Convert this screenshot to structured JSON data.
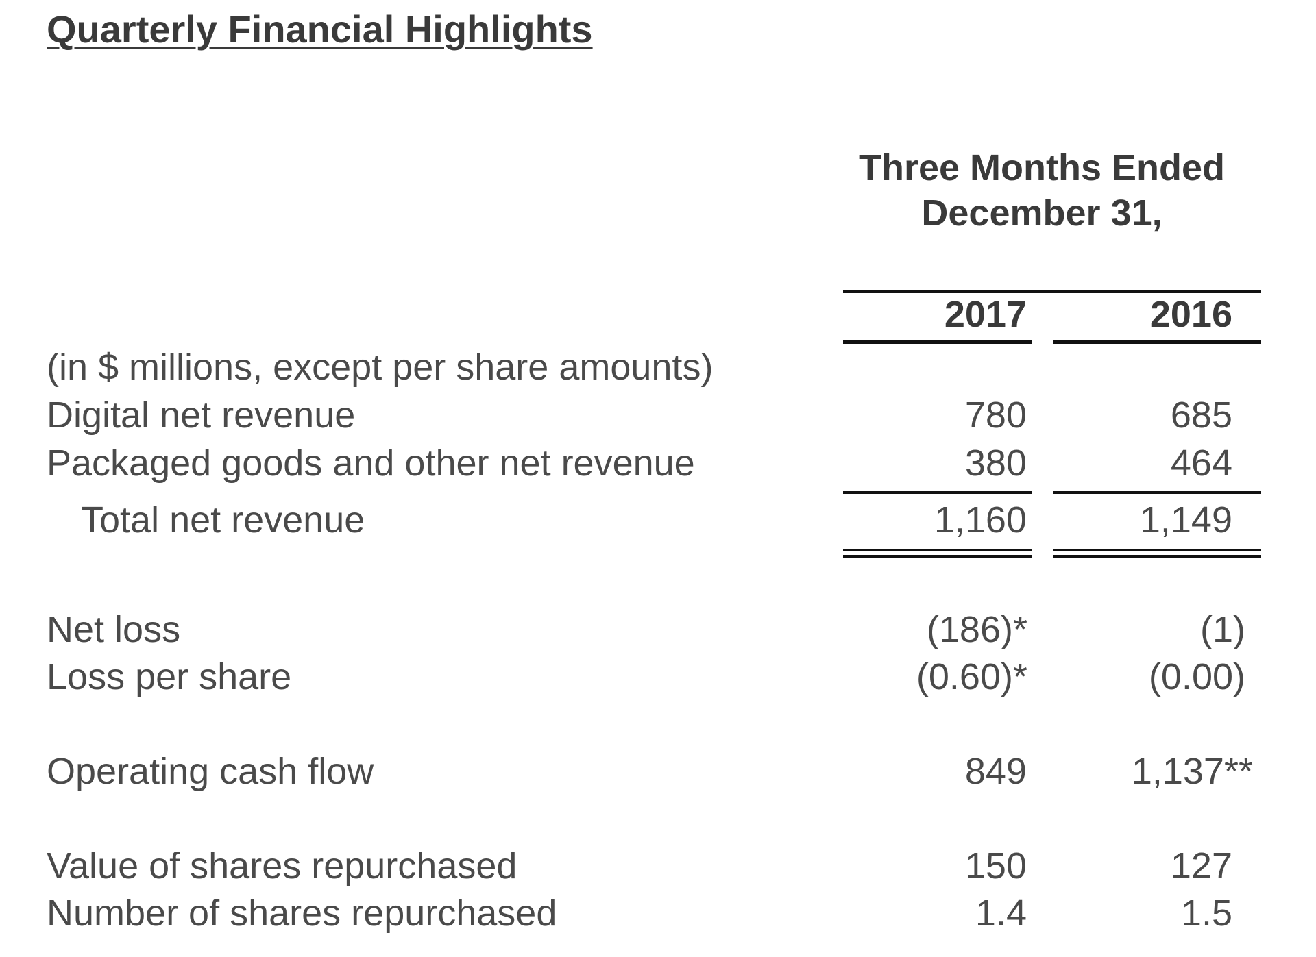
{
  "title": "Quarterly Financial Highlights",
  "period_header": {
    "line1": "Three Months Ended",
    "line2": "December 31,"
  },
  "years": [
    "2017",
    "2016"
  ],
  "units_note": "(in $ millions, except per share amounts)",
  "rows": {
    "digital": {
      "label": "Digital net revenue",
      "v2017": "780",
      "v2016": "685"
    },
    "packaged": {
      "label": "Packaged goods and other net revenue",
      "v2017": "380",
      "v2016": "464"
    },
    "total": {
      "label": "Total net revenue",
      "v2017": "1,160",
      "v2016": "1,149"
    },
    "net_loss": {
      "label": "Net loss",
      "v2017": "(186)*",
      "v2016": "(1)"
    },
    "loss_per_share": {
      "label": "Loss per share",
      "v2017": "(0.60)*",
      "v2016": "(0.00)"
    },
    "operating_cash_flow": {
      "label": "Operating cash flow",
      "v2017": "849",
      "v2016": "1,137**"
    },
    "value_repurchased": {
      "label": "Value of shares repurchased",
      "v2017": "150",
      "v2016": "127"
    },
    "number_repurchased": {
      "label": "Number of shares repurchased",
      "v2017": "1.4",
      "v2016": "1.5"
    }
  }
}
